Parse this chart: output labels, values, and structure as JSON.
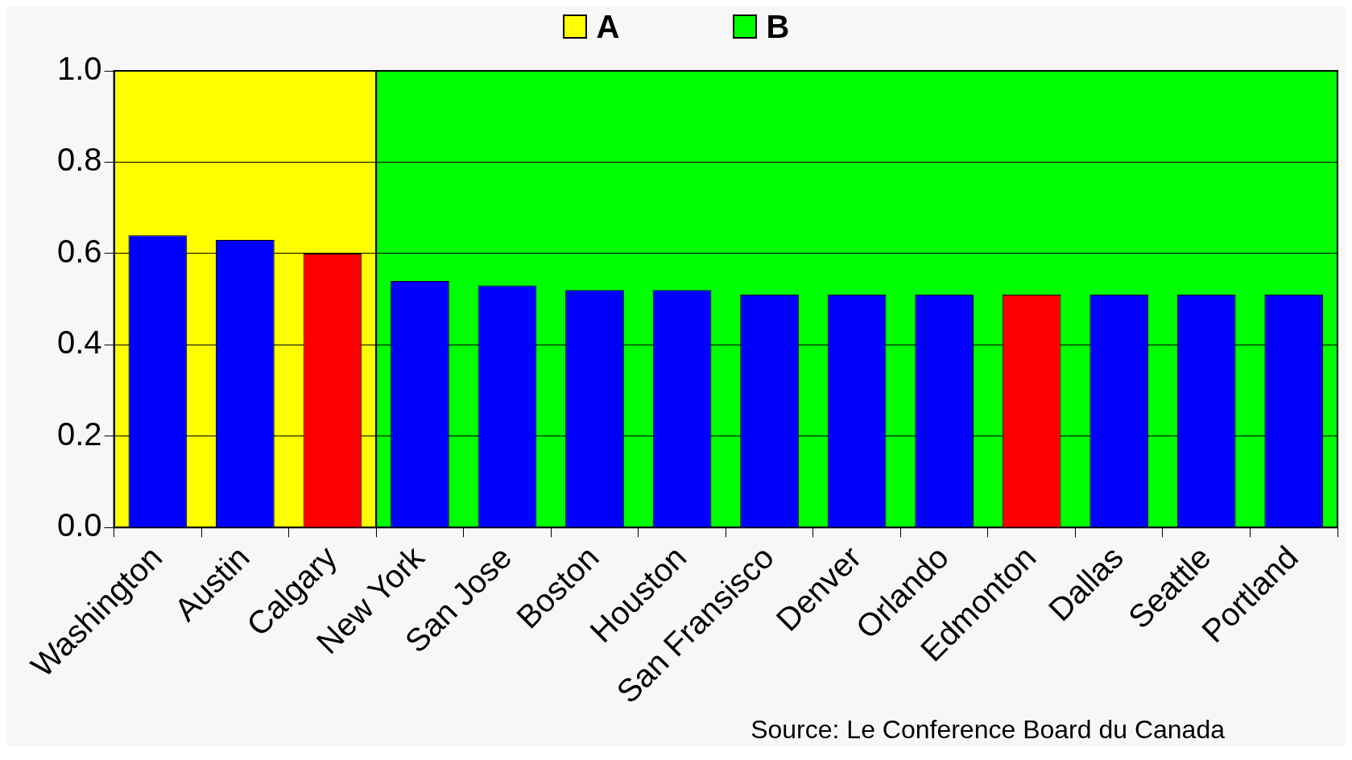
{
  "chart_data": {
    "type": "bar",
    "categories": [
      "Washington",
      "Austin",
      "Calgary",
      "New York",
      "San Jose",
      "Boston",
      "Houston",
      "San Fransisco",
      "Denver",
      "Orlando",
      "Edmonton",
      "Dallas",
      "Seattle",
      "Portland"
    ],
    "values": [
      0.64,
      0.63,
      0.6,
      0.54,
      0.53,
      0.52,
      0.52,
      0.51,
      0.51,
      0.51,
      0.51,
      0.51,
      0.51,
      0.51
    ],
    "colors": [
      "#0000ff",
      "#0000ff",
      "#ff0000",
      "#0000ff",
      "#0000ff",
      "#0000ff",
      "#0000ff",
      "#0000ff",
      "#0000ff",
      "#0000ff",
      "#ff0000",
      "#0000ff",
      "#0000ff",
      "#0000ff"
    ],
    "ylim": [
      0,
      1
    ],
    "yticks": [
      {
        "value": 0,
        "label": "0.0"
      },
      {
        "value": 0.2,
        "label": "0.2"
      },
      {
        "value": 0.4,
        "label": "0.4"
      },
      {
        "value": 0.6,
        "label": "0.6"
      },
      {
        "value": 0.8,
        "label": "0.8"
      },
      {
        "value": 1,
        "label": "1.0"
      }
    ],
    "bands": [
      {
        "axis": "x",
        "from": "Washington",
        "to": "Calgary",
        "label": "A",
        "color": "#ffff00"
      },
      {
        "axis": "x",
        "from": "New York",
        "to": "Portland",
        "label": "B",
        "color": "#00ff00"
      }
    ],
    "grid": "y",
    "legend": "top",
    "annotations": [
      "Source: Le Conference Board du Canada"
    ]
  }
}
